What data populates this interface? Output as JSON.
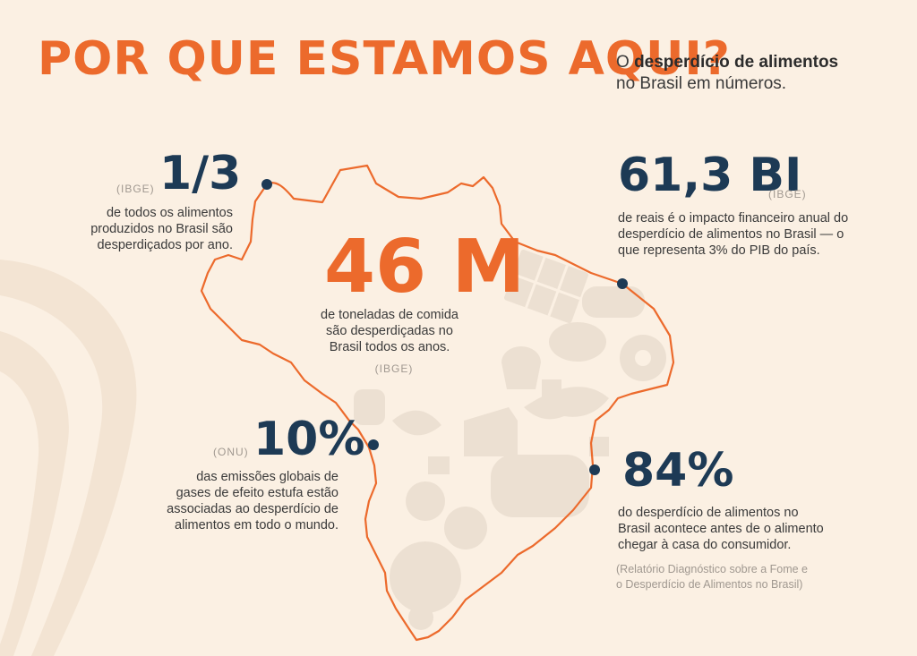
{
  "header": {
    "title_part1": "POR QUE ",
    "title_part2": "ESTAMOS AQUI?",
    "subtitle_lead": "O ",
    "subtitle_bold": "desperdício de alimentos",
    "subtitle_rest": "no Brasil em números."
  },
  "stats": {
    "one_third": {
      "value": "1/3",
      "source": "(IBGE)",
      "description": [
        "de todos os alimentos",
        "produzidos no Brasil são",
        "desperdiçados por ano."
      ]
    },
    "forty_six": {
      "value": "46 M",
      "description": [
        "de toneladas de comida",
        "são desperdiçadas no",
        "Brasil todos os anos."
      ],
      "source": "(IBGE)"
    },
    "sixty_one": {
      "value": "61,3 BI",
      "source": "(IBGE)",
      "description": [
        "de reais é o impacto financeiro anual do",
        "desperdício de alimentos no Brasil — o",
        "que representa 3% do PIB do país."
      ]
    },
    "ten_percent": {
      "value": "10%",
      "source": "(ONU)",
      "description": [
        "das emissões globais de",
        "gases de efeito estufa estão",
        "associadas ao desperdício de",
        "alimentos em todo o mundo."
      ]
    },
    "eighty_four": {
      "value": "84%",
      "description": [
        "do desperdício de alimentos no",
        "Brasil acontece antes de o alimento",
        "chegar à casa do consumidor."
      ],
      "source": [
        "(Relatório Diagnóstico sobre a Fome e",
        "o Desperdício de Alimentos no Brasil)"
      ]
    }
  },
  "colors": {
    "accent_orange": "#ec6a2c",
    "number_navy": "#1d3a55",
    "background": "#fbf0e3",
    "food_silhouettes": "#ece0d2"
  }
}
